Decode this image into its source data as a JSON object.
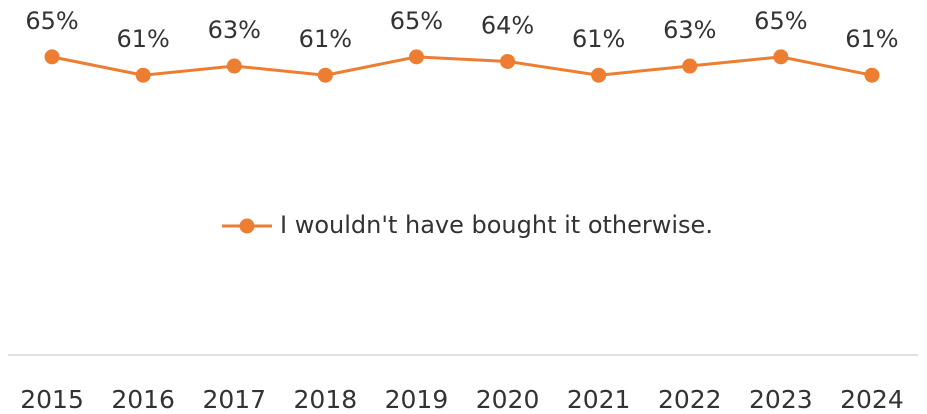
{
  "chart_data": {
    "type": "line",
    "categories": [
      "2015",
      "2016",
      "2017",
      "2018",
      "2019",
      "2020",
      "2021",
      "2022",
      "2023",
      "2024"
    ],
    "series": [
      {
        "name": "I wouldn't have bought it otherwise.",
        "color": "#ed7d31",
        "values": [
          65,
          61,
          63,
          61,
          65,
          64,
          61,
          63,
          65,
          61
        ],
        "value_labels": [
          "65%",
          "61%",
          "63%",
          "61%",
          "65%",
          "64%",
          "61%",
          "63%",
          "65%",
          "61%"
        ]
      }
    ],
    "ylim": [
      0,
      75
    ],
    "legend": "center"
  }
}
